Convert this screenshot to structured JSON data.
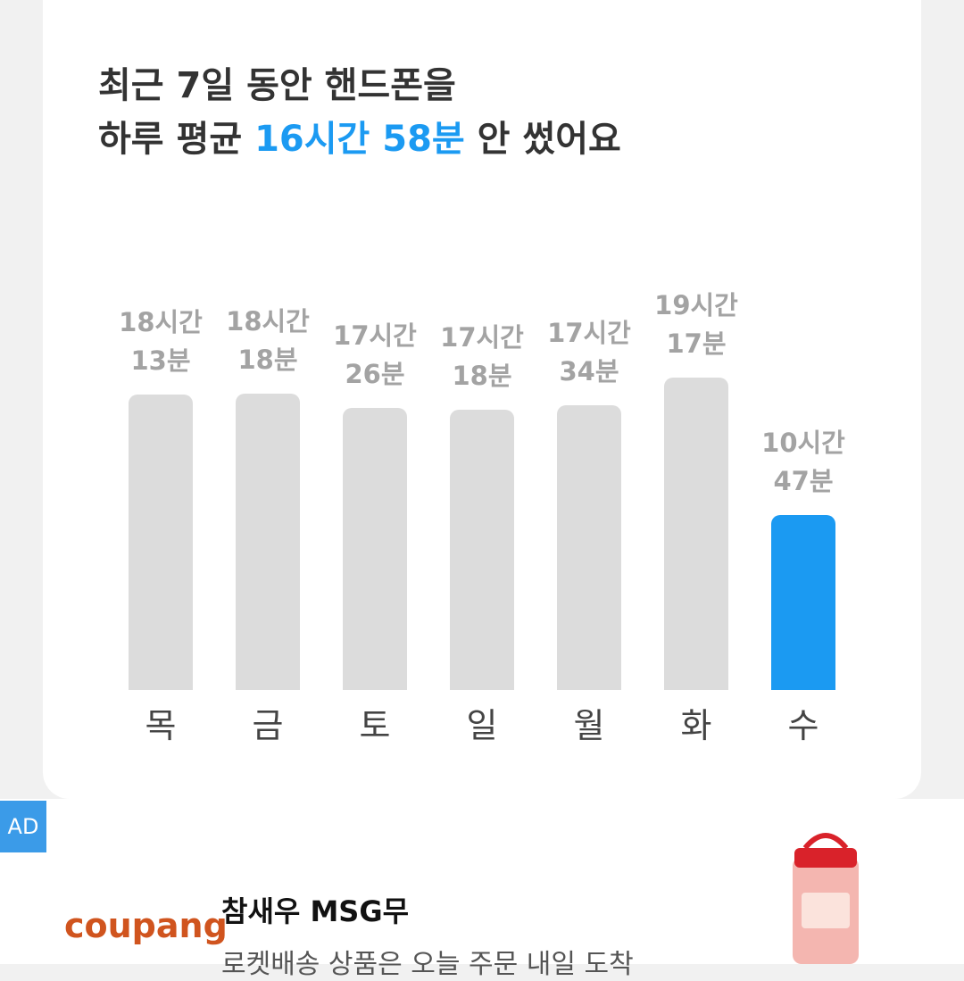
{
  "header": {
    "line1": "최근 7일 동안 핸드폰을",
    "line2_before": "하루 평균",
    "highlight": "16시간 58분",
    "line2_after": "안 썼어요"
  },
  "chart_data": {
    "type": "bar",
    "categories": [
      "목",
      "금",
      "토",
      "일",
      "월",
      "화",
      "수"
    ],
    "values": [
      1093,
      1098,
      1046,
      1038,
      1054,
      1157,
      647
    ],
    "value_labels": [
      "18시간\n13분",
      "18시간\n18분",
      "17시간\n26분",
      "17시간\n18분",
      "17시간\n34분",
      "19시간\n17분",
      "10시간\n47분"
    ],
    "colors": [
      "#dcdcdc",
      "#dcdcdc",
      "#dcdcdc",
      "#dcdcdc",
      "#dcdcdc",
      "#dcdcdc",
      "#1b9af2"
    ]
  },
  "ad": {
    "badge": "AD",
    "brand": "coupang",
    "product": "참새우 MSG무",
    "description": "로켓배송 상품은 오늘 주문 내일 도착"
  }
}
